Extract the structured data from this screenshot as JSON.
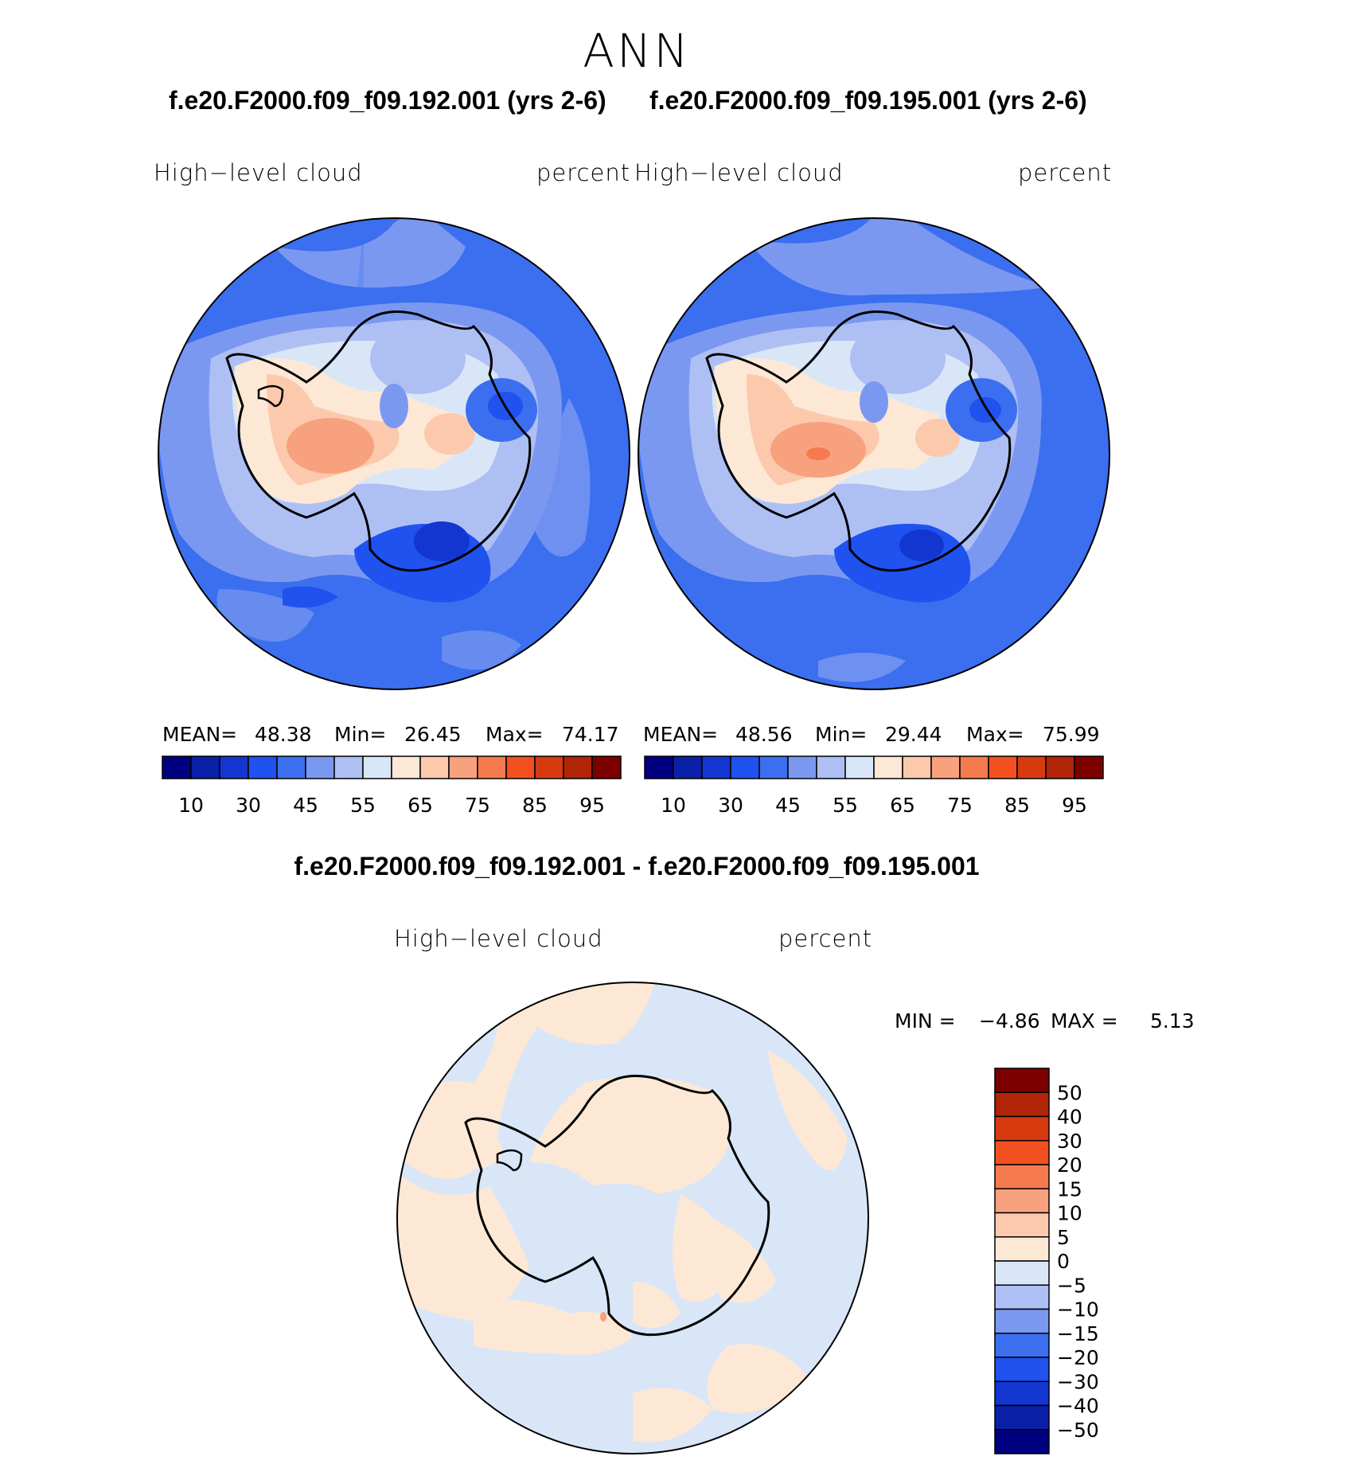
{
  "title": "ANN",
  "panels": [
    {
      "case": "f.e20.F2000.f09_f09.192.001 (yrs 2-6)",
      "variable": "High−level cloud",
      "units": "percent",
      "mean_label": "MEAN=",
      "mean_value": "48.38",
      "min_label": "Min=",
      "min_value": "26.45",
      "max_label": "Max=",
      "max_value": "74.17"
    },
    {
      "case": "f.e20.F2000.f09_f09.195.001 (yrs 2-6)",
      "variable": "High−level cloud",
      "units": "percent",
      "mean_label": "MEAN=",
      "mean_value": "48.56",
      "min_label": "Min=",
      "min_value": "29.44",
      "max_label": "Max=",
      "max_value": "75.99"
    }
  ],
  "diff": {
    "title": "f.e20.F2000.f09_f09.192.001 - f.e20.F2000.f09_f09.195.001",
    "variable": "High−level cloud",
    "units": "percent",
    "min_label": "MIN =",
    "min_value": "−4.86",
    "max_label": "MAX =",
    "max_value": "5.13"
  },
  "colorbar_abs": {
    "colors": [
      "#000080",
      "#0b20a8",
      "#1436d0",
      "#1f52ee",
      "#3b6fef",
      "#7b98f1",
      "#aebff4",
      "#d8e6f8",
      "#fde8d6",
      "#fcc9ad",
      "#f8a17f",
      "#f57a4e",
      "#f2501e",
      "#d83a10",
      "#b02407",
      "#7c0000"
    ],
    "tick_labels": [
      "10",
      "30",
      "45",
      "55",
      "65",
      "75",
      "85",
      "95"
    ]
  },
  "colorbar_diff": {
    "colors": [
      "#7c0000",
      "#b02407",
      "#d83a10",
      "#f2501e",
      "#f57a4e",
      "#f8a17f",
      "#fcc9ad",
      "#fde8d6",
      "#d8e6f8",
      "#aebff4",
      "#7b98f1",
      "#3b6fef",
      "#1f52ee",
      "#1436d0",
      "#0b20a8",
      "#000080"
    ],
    "tick_labels": [
      "50",
      "40",
      "30",
      "20",
      "15",
      "10",
      "5",
      "0",
      "−5",
      "−10",
      "−15",
      "−20",
      "−30",
      "−40",
      "−50"
    ]
  },
  "map_colors": {
    "ocean_base": "#3b6fef",
    "lightest_blue": "#d8e6f8",
    "light_blue": "#aebff4",
    "mid_blue": "#7b98f1",
    "deep_blue": "#1f52ee",
    "deeper_blue": "#1436d0",
    "peach": "#fde8d6",
    "salmon": "#fcc9ad",
    "orange": "#f8a17f",
    "red_orange": "#f57a4e",
    "coastline": "#000000"
  }
}
